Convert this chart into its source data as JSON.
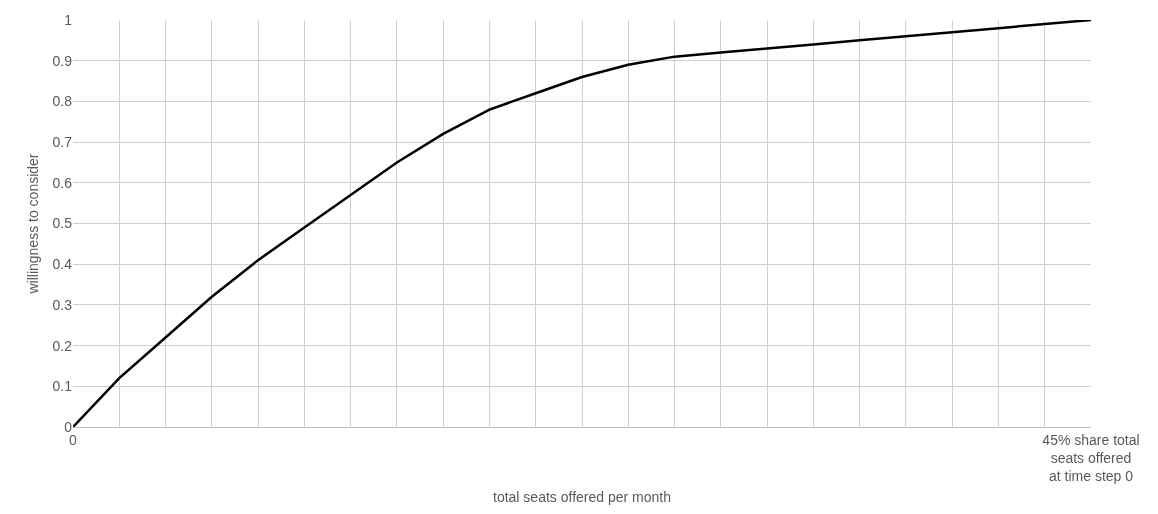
{
  "chart_data": {
    "type": "line",
    "xlabel": "total seats offered per month",
    "ylabel": "willingness to consider",
    "categories": [
      "0",
      null,
      null,
      null,
      null,
      null,
      null,
      null,
      null,
      null,
      null,
      null,
      null,
      null,
      null,
      null,
      null,
      null,
      null,
      null,
      null,
      null,
      "45% share total\nseats offered\nat time step 0"
    ],
    "series": [
      {
        "color": "#000000",
        "values": [
          0,
          0.12,
          0.22,
          0.32,
          0.41,
          0.49,
          0.57,
          0.65,
          0.72,
          0.78,
          0.82,
          0.86,
          0.89,
          0.91,
          0.92,
          0.93,
          0.94,
          0.95,
          0.96,
          0.97,
          0.98,
          0.99,
          1
        ]
      }
    ],
    "ylim": [
      0,
      1
    ],
    "yticks": [
      0,
      0.1,
      0.2,
      0.3,
      0.4,
      0.5,
      0.6,
      0.7,
      0.8,
      0.9,
      1
    ],
    "grid": true,
    "marker": "none",
    "line_style": "solid"
  }
}
